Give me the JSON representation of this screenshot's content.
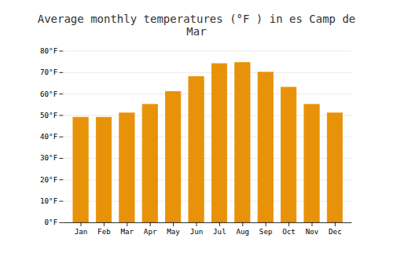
{
  "chart_data": {
    "type": "bar",
    "title": "Average monthly temperatures (°F ) in es Camp de Mar",
    "categories": [
      "Jan",
      "Feb",
      "Mar",
      "Apr",
      "May",
      "Jun",
      "Jul",
      "Aug",
      "Sep",
      "Oct",
      "Nov",
      "Dec"
    ],
    "values": [
      49,
      49,
      51,
      55,
      61,
      68,
      74,
      74.5,
      70,
      63,
      55,
      51
    ],
    "color": "#E8920A",
    "ylim": [
      0,
      80
    ],
    "yticks": [
      {
        "value": 0,
        "label": "0°F"
      },
      {
        "value": 10,
        "label": "10°F"
      },
      {
        "value": 20,
        "label": "20°F"
      },
      {
        "value": 30,
        "label": "30°F"
      },
      {
        "value": 40,
        "label": "40°F"
      },
      {
        "value": 50,
        "label": "50°F"
      },
      {
        "value": 60,
        "label": "60°F"
      },
      {
        "value": 70,
        "label": "70°F"
      },
      {
        "value": 80,
        "label": "80°F"
      }
    ],
    "grid": true
  }
}
